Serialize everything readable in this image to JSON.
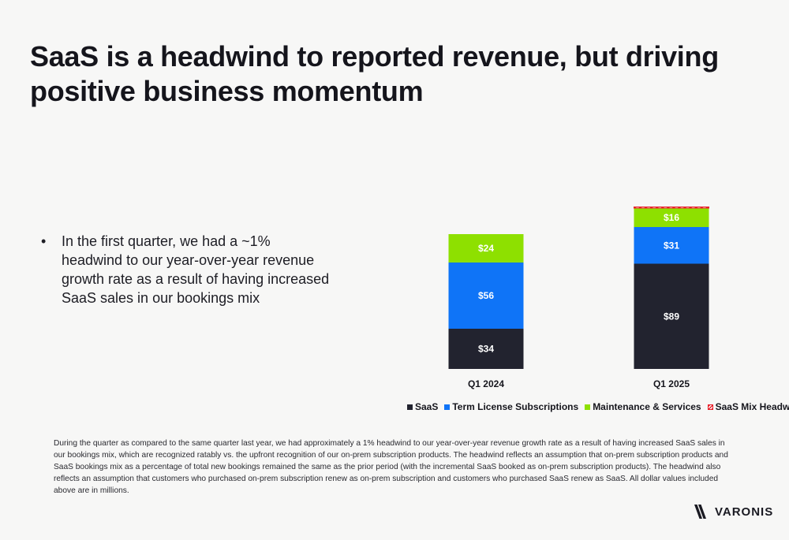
{
  "title": "SaaS is a headwind to reported revenue, but driving positive business momentum",
  "bullet": {
    "marker": "•",
    "text": "In the first quarter, we had a ~1% headwind to our year-over-year revenue growth rate as a result of having increased SaaS sales in our bookings mix"
  },
  "chart_data": {
    "type": "bar",
    "stacked": true,
    "categories": [
      "Q1 2024",
      "Q1 2025"
    ],
    "series": [
      {
        "name": "SaaS",
        "values": [
          34,
          89
        ],
        "labels": [
          "$34",
          "$89"
        ],
        "color": "#22232f"
      },
      {
        "name": "Term License Subscriptions",
        "values": [
          56,
          31
        ],
        "labels": [
          "$56",
          "$31"
        ],
        "color": "#0f74f7"
      },
      {
        "name": "Maintenance & Services",
        "values": [
          24,
          16
        ],
        "labels": [
          "$24",
          "$16"
        ],
        "color": "#8ee000"
      },
      {
        "name": "SaaS Mix Headwind",
        "values": [
          0,
          1
        ],
        "labels": [
          "",
          ""
        ],
        "color": "#e8202a",
        "pattern": "hatch"
      }
    ],
    "legend_position": "bottom",
    "grid": false
  },
  "footnote": "During the quarter as compared to the same quarter last year, we had approximately a 1% headwind to our year-over-year revenue growth rate as a result of having increased SaaS sales in our bookings mix, which are recognized ratably vs. the upfront recognition of our on-prem subscription products. The headwind reflects an assumption that on-prem subscription products and SaaS bookings mix as a percentage of total new bookings remained the same as the prior period (with the incremental SaaS booked as on-prem subscription products). The headwind also reflects an assumption that customers who purchased on-prem subscription renew as on-prem subscription and customers who purchased SaaS renew as SaaS. All dollar values included above are in millions.",
  "logo": {
    "text": "VARONIS",
    "icon": "varonis-logo-icon"
  },
  "colors": {
    "background": "#f7f7f6",
    "text": "#16161d"
  }
}
